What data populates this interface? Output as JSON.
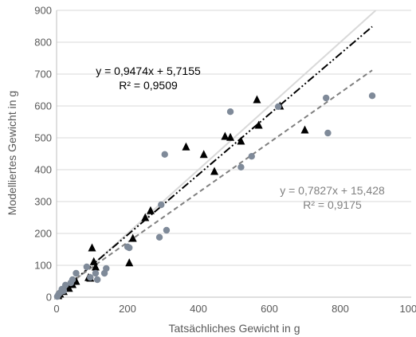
{
  "chart_data": {
    "type": "scatter",
    "title": "",
    "xlabel": "Tatsächliches Gewicht in g",
    "ylabel": "Modelliertes Gewicht in g",
    "xlim": [
      0,
      1000
    ],
    "ylim": [
      0,
      900
    ],
    "xticks": [
      0,
      200,
      400,
      600,
      800,
      1000
    ],
    "yticks": [
      0,
      100,
      200,
      300,
      400,
      500,
      600,
      700,
      800,
      900
    ],
    "x_tick_labels": [
      "0",
      "200",
      "400",
      "600",
      "800",
      "1000"
    ],
    "y_tick_labels": [
      "0",
      "100",
      "200",
      "300",
      "400",
      "500",
      "600",
      "700",
      "800",
      "900"
    ],
    "grid": "horizontal",
    "series": [
      {
        "marker": "triangle",
        "color": "#000000",
        "points": [
          [
            5,
            5
          ],
          [
            10,
            10
          ],
          [
            20,
            18
          ],
          [
            35,
            28
          ],
          [
            45,
            40
          ],
          [
            55,
            50
          ],
          [
            90,
            62
          ],
          [
            95,
            60
          ],
          [
            100,
            155
          ],
          [
            105,
            112
          ],
          [
            110,
            95
          ],
          [
            205,
            108
          ],
          [
            215,
            185
          ],
          [
            250,
            250
          ],
          [
            265,
            272
          ],
          [
            365,
            472
          ],
          [
            415,
            448
          ],
          [
            445,
            395
          ],
          [
            475,
            505
          ],
          [
            490,
            502
          ],
          [
            520,
            490
          ],
          [
            565,
            620
          ],
          [
            570,
            540
          ],
          [
            630,
            600
          ],
          [
            700,
            525
          ]
        ]
      },
      {
        "marker": "circle",
        "color": "#7f8a99",
        "points": [
          [
            2,
            2
          ],
          [
            5,
            8
          ],
          [
            10,
            14
          ],
          [
            15,
            25
          ],
          [
            20,
            20
          ],
          [
            25,
            38
          ],
          [
            40,
            45
          ],
          [
            45,
            55
          ],
          [
            55,
            75
          ],
          [
            85,
            95
          ],
          [
            95,
            62
          ],
          [
            110,
            75
          ],
          [
            115,
            55
          ],
          [
            135,
            75
          ],
          [
            140,
            90
          ],
          [
            200,
            158
          ],
          [
            205,
            155
          ],
          [
            290,
            188
          ],
          [
            295,
            290
          ],
          [
            305,
            448
          ],
          [
            310,
            210
          ],
          [
            490,
            582
          ],
          [
            520,
            408
          ],
          [
            550,
            442
          ],
          [
            625,
            598
          ],
          [
            760,
            625
          ],
          [
            765,
            515
          ],
          [
            890,
            632
          ]
        ]
      }
    ],
    "reference_line": {
      "slope": 1,
      "intercept": 0,
      "color": "#d9d9d9"
    },
    "trendlines": [
      {
        "slope": 0.9474,
        "intercept": 5.7155,
        "x_range": [
          0,
          890
        ],
        "style": "dash-dot-dot",
        "color": "#000000",
        "equation": "y = 0,9474x + 5,7155",
        "r2": "R² = 0,9509"
      },
      {
        "slope": 0.7827,
        "intercept": 15.428,
        "x_range": [
          0,
          890
        ],
        "style": "dashed",
        "color": "#808080",
        "equation": "y = 0,7827x + 15,428",
        "r2": "R² = 0,9175"
      }
    ]
  }
}
